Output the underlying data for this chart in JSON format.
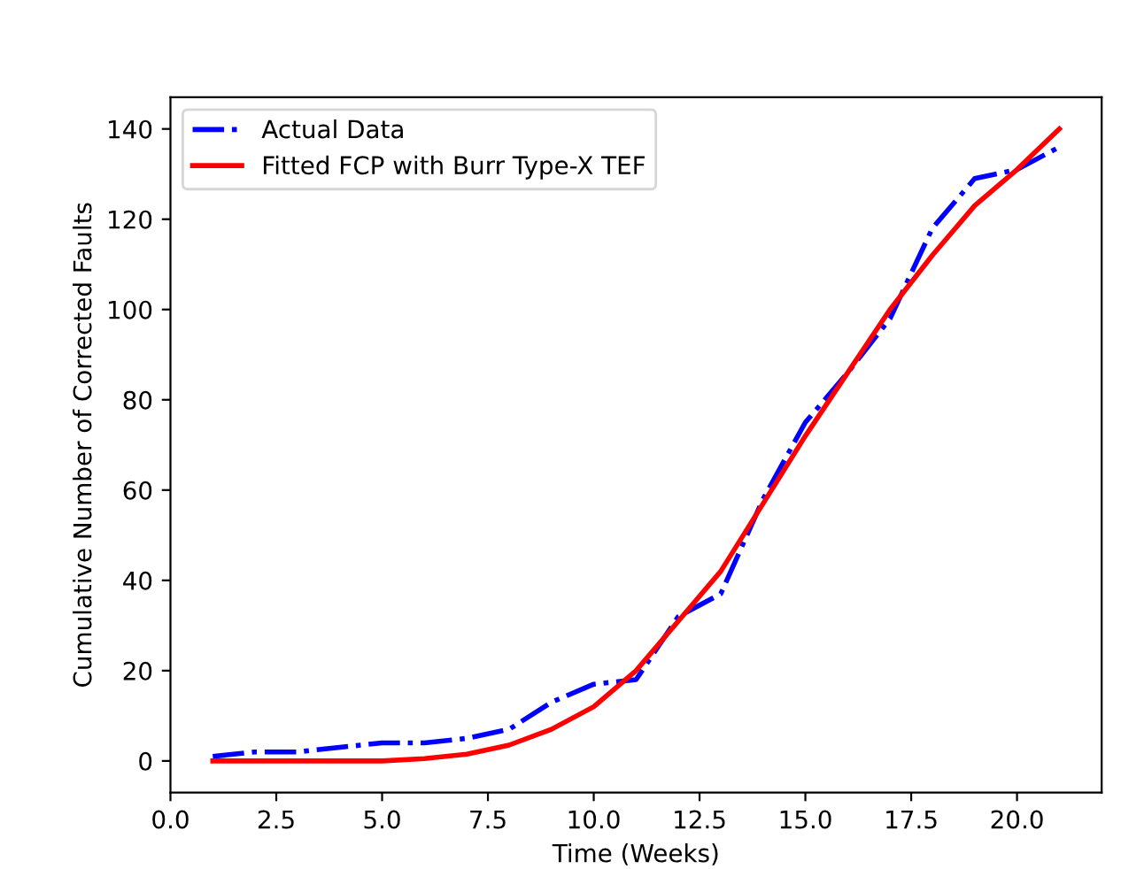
{
  "chart_data": {
    "type": "line",
    "xlabel": "Time (Weeks)",
    "ylabel": "Cumulative Number of Corrected Faults",
    "x": [
      1,
      2,
      3,
      4,
      5,
      6,
      7,
      8,
      9,
      10,
      11,
      12,
      13,
      14,
      15,
      16,
      17,
      18,
      19,
      20,
      21
    ],
    "series": [
      {
        "name": "Actual Data",
        "color": "#0000ff",
        "line_style": "dashdot",
        "values": [
          1,
          2,
          2,
          3,
          4,
          4,
          5,
          7,
          13,
          17,
          18,
          32,
          37,
          58,
          75,
          86,
          98,
          118,
          129,
          131,
          136
        ]
      },
      {
        "name": "Fitted FCP with Burr Type-X TEF",
        "color": "#ff0000",
        "line_style": "solid",
        "values": [
          0,
          0,
          0,
          0,
          0,
          0.5,
          1.5,
          3.5,
          7,
          12,
          20,
          31,
          42,
          57,
          72,
          86,
          100,
          112,
          123,
          131,
          140
        ]
      }
    ],
    "xlim": [
      0,
      22
    ],
    "ylim": [
      -7,
      147
    ],
    "xticks": [
      {
        "value": 0,
        "label": "0.0"
      },
      {
        "value": 2.5,
        "label": "2.5"
      },
      {
        "value": 5,
        "label": "5.0"
      },
      {
        "value": 7.5,
        "label": "7.5"
      },
      {
        "value": 10,
        "label": "10.0"
      },
      {
        "value": 12.5,
        "label": "12.5"
      },
      {
        "value": 15,
        "label": "15.0"
      },
      {
        "value": 17.5,
        "label": "17.5"
      },
      {
        "value": 20,
        "label": "20.0"
      }
    ],
    "yticks": [
      0,
      20,
      40,
      60,
      80,
      100,
      120,
      140
    ],
    "legend": "top left",
    "grid": false,
    "marker": "none"
  }
}
